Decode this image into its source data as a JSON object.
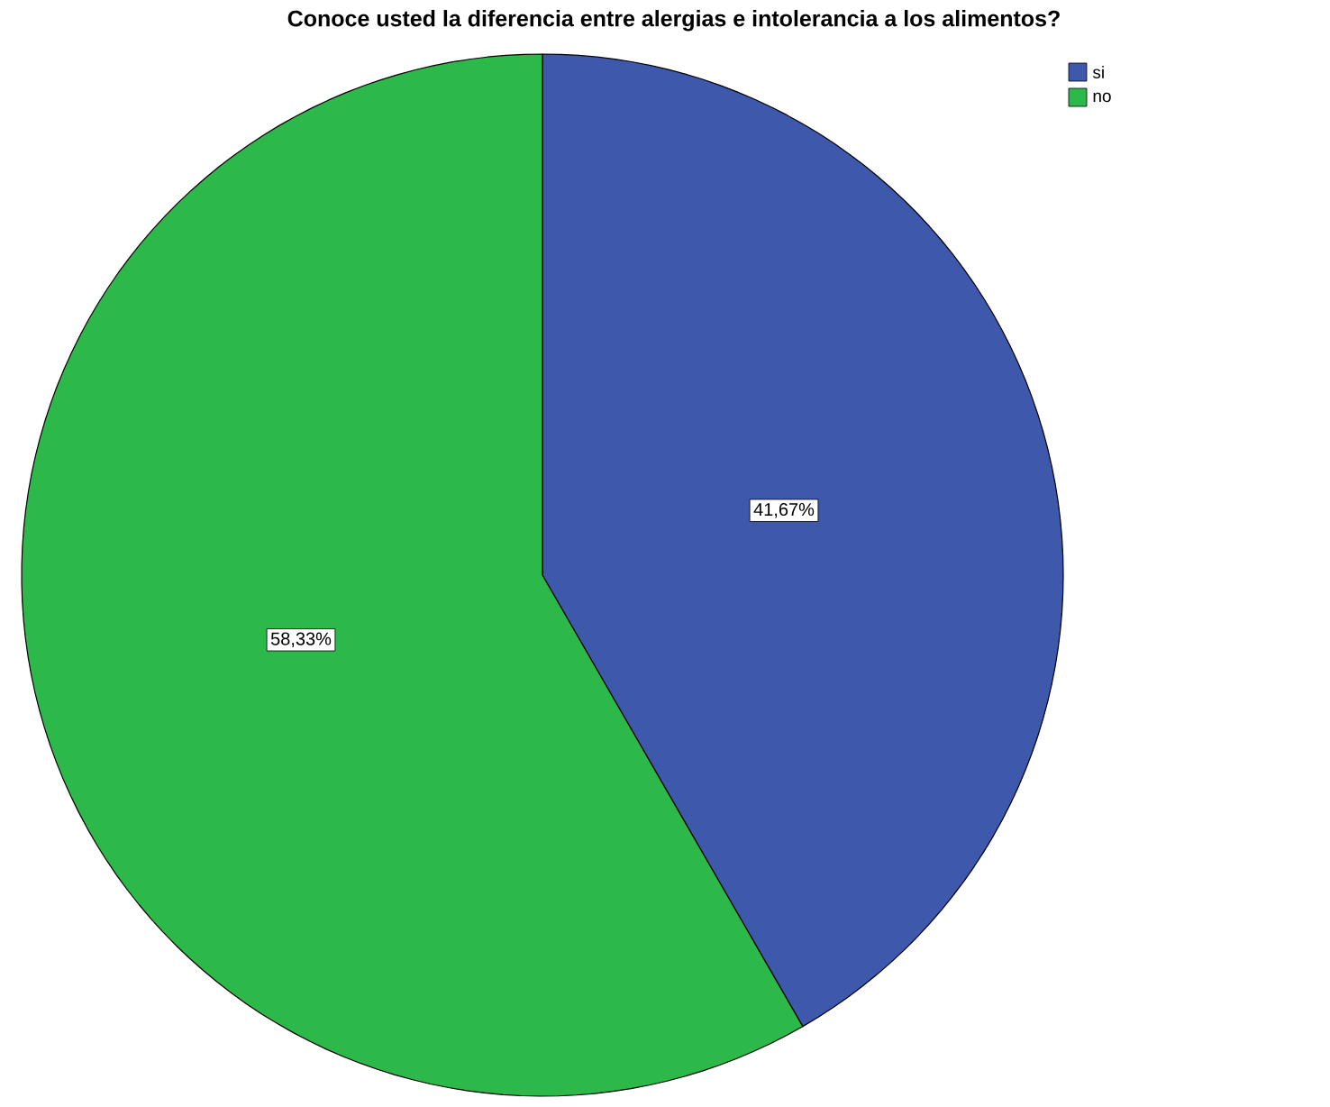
{
  "chart_data": {
    "type": "pie",
    "title": "Conoce usted la diferencia entre alergias e intolerancia a los alimentos?",
    "categories": [
      "si",
      "no"
    ],
    "values": [
      41.67,
      58.33
    ],
    "colors": [
      "#3e58ac",
      "#2db84a"
    ],
    "value_labels": [
      "41,67%",
      "58,33%"
    ],
    "legend": "top right"
  }
}
